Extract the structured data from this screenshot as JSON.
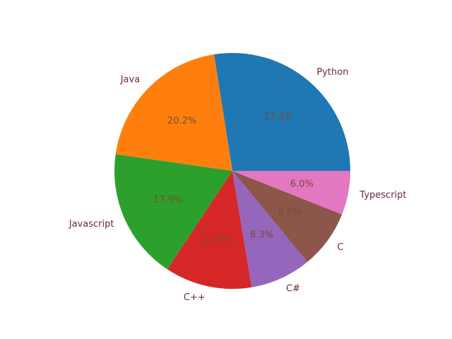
{
  "chart_data": {
    "type": "pie",
    "title": "",
    "categories": [
      "Python",
      "Java",
      "Javascript",
      "C++",
      "C#",
      "C",
      "Typescript"
    ],
    "values": [
      27.4,
      20.2,
      17.9,
      11.9,
      8.3,
      8.0,
      6.0
    ],
    "percent_labels": [
      "27.4%",
      "20.2%",
      "17.9%",
      "11.9%",
      "8.3%",
      "8.0%",
      "6.0%"
    ],
    "colors": [
      "#1f77b4",
      "#ff7f0e",
      "#2ca02c",
      "#d62728",
      "#9467bd",
      "#8c564b",
      "#e377c2"
    ],
    "start_angle": 0,
    "direction": "counterclockwise"
  }
}
